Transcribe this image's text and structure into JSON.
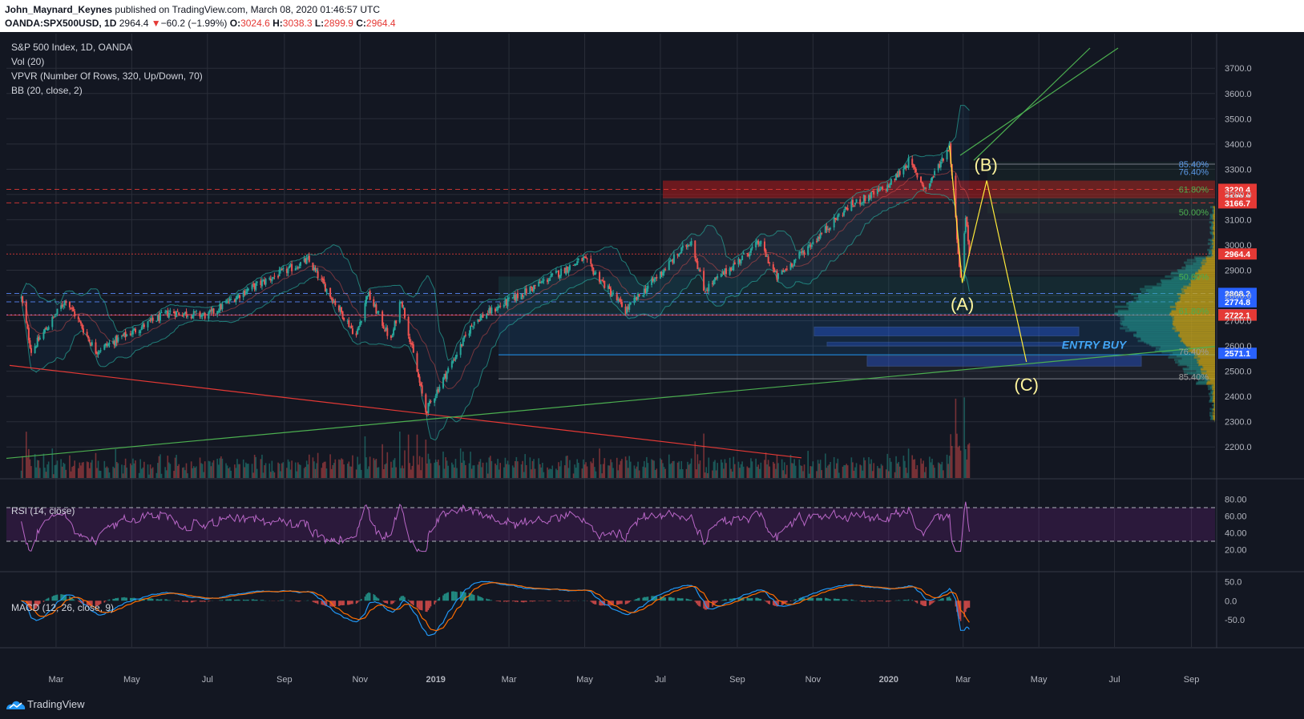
{
  "header": {
    "author": "John_Maynard_Keynes",
    "published_text": " published on TradingView.com, March 08, 2020 01:46:57 UTC",
    "symbol": "OANDA:SPX500USD, 1D",
    "last": "2964.4",
    "down_arrow": "▼",
    "change": "−60.2 (−1.99%)",
    "o_label": "O:",
    "o_value": "3024.6",
    "h_label": "H:",
    "h_value": "3038.3",
    "l_label": "L:",
    "l_value": "2899.9",
    "c_label": "C:",
    "c_value": "2964.4"
  },
  "legend": {
    "title": "S&P 500 Index, 1D, OANDA",
    "vol": "Vol (20)",
    "vpvr": "VPVR (Number Of Rows, 320, Up/Down, 70)",
    "bb": "BB (20, close, 2)"
  },
  "rsi_label": "RSI (14, close)",
  "macd_label": "MACD (12, 26, close, 9)",
  "colors": {
    "background": "#131722",
    "up": "#26a69a",
    "down": "#ef5350",
    "grid": "#2a2e39",
    "rsi": "#9c27b0",
    "macd": "#2196f3",
    "signal": "#ff6d00",
    "wave": "#ffeb3b",
    "trend_green": "#4caf50",
    "trend_red": "#e53935"
  },
  "chart_data": [
    {
      "type": "candlestick",
      "title": "S&P 500 Index, 1D, OANDA",
      "ylim": [
        2150,
        3780
      ],
      "y_ticks": [
        "3700.0",
        "3600.0",
        "3500.0",
        "3400.0",
        "3300.0",
        "3200.0",
        "3100.0",
        "3000.0",
        "2900.0",
        "2800.0",
        "2700.0",
        "2600.0",
        "2500.0",
        "2400.0",
        "2300.0",
        "2200.0"
      ],
      "x_ticks": [
        "Mar",
        "May",
        "Jul",
        "Sep",
        "Nov",
        "2019",
        "Mar",
        "May",
        "Jul",
        "Sep",
        "Nov",
        "2020",
        "Mar",
        "May",
        "Jul",
        "Sep"
      ],
      "price_path": [
        {
          "date": "2018-02-01",
          "close": 2790
        },
        {
          "date": "2018-02-09",
          "close": 2580
        },
        {
          "date": "2018-03-09",
          "close": 2785
        },
        {
          "date": "2018-04-02",
          "close": 2580
        },
        {
          "date": "2018-06-01",
          "close": 2735
        },
        {
          "date": "2018-07-01",
          "close": 2720
        },
        {
          "date": "2018-08-01",
          "close": 2820
        },
        {
          "date": "2018-09-20",
          "close": 2940
        },
        {
          "date": "2018-10-29",
          "close": 2640
        },
        {
          "date": "2018-11-07",
          "close": 2810
        },
        {
          "date": "2018-11-26",
          "close": 2620
        },
        {
          "date": "2018-12-04",
          "close": 2790
        },
        {
          "date": "2018-12-24",
          "close": 2340
        },
        {
          "date": "2019-02-01",
          "close": 2700
        },
        {
          "date": "2019-04-30",
          "close": 2945
        },
        {
          "date": "2019-06-03",
          "close": 2740
        },
        {
          "date": "2019-07-26",
          "close": 3020
        },
        {
          "date": "2019-08-05",
          "close": 2820
        },
        {
          "date": "2019-09-19",
          "close": 3010
        },
        {
          "date": "2019-10-03",
          "close": 2870
        },
        {
          "date": "2019-11-29",
          "close": 3150
        },
        {
          "date": "2019-12-31",
          "close": 3230
        },
        {
          "date": "2020-01-17",
          "close": 3330
        },
        {
          "date": "2020-01-31",
          "close": 3220
        },
        {
          "date": "2020-02-19",
          "close": 3395
        },
        {
          "date": "2020-02-28",
          "close": 2860
        },
        {
          "date": "2020-03-03",
          "close": 3120
        },
        {
          "date": "2020-03-06",
          "close": 2964.4
        }
      ],
      "price_tags": [
        {
          "value": "3220.4",
          "color": "#e53935"
        },
        {
          "value": "3189.8",
          "color": "#e53935"
        },
        {
          "value": "3166.7",
          "color": "#e53935"
        },
        {
          "value": "2964.4",
          "color": "#e53935"
        },
        {
          "value": "2808.2",
          "color": "#2962ff"
        },
        {
          "value": "2774.8",
          "color": "#2962ff"
        },
        {
          "value": "2723.3",
          "color": "#d37fd9"
        },
        {
          "value": "2722.1",
          "color": "#e53935"
        },
        {
          "value": "2571.1",
          "color": "#2962ff"
        }
      ],
      "fib_labels_upper": [
        {
          "label": "85.40%",
          "value": 3320
        },
        {
          "label": "76.40%",
          "value": 3290
        },
        {
          "label": "61.80%",
          "value": 3220
        },
        {
          "label": "50.00%",
          "value": 3130
        }
      ],
      "fib_labels_lower": [
        {
          "label": "50.00%",
          "value": 2875
        },
        {
          "label": "61.80%",
          "value": 2738
        },
        {
          "label": "76.40%",
          "value": 2578
        },
        {
          "label": "85.40%",
          "value": 2478
        }
      ],
      "wave_labels": [
        {
          "label": "(A)",
          "date": "2020-02-28",
          "value": 2855
        },
        {
          "label": "(B)",
          "date": "2020-03-20",
          "value": 3255
        },
        {
          "label": "(C)",
          "date": "2020-04-21",
          "value": 2537
        }
      ],
      "annotation": "ENTRY BUY"
    },
    {
      "type": "line",
      "name": "RSI (14, close)",
      "ylim": [
        10,
        90
      ],
      "y_ticks": [
        "80.00",
        "60.00",
        "40.00",
        "20.00"
      ],
      "bands": [
        70,
        30
      ]
    },
    {
      "type": "line",
      "name": "MACD (12, 26, close, 9)",
      "ylim": [
        -95,
        60
      ],
      "y_ticks": [
        "50.0",
        "0.0",
        "-50.0"
      ]
    }
  ],
  "footer": {
    "brand": "TradingView"
  }
}
